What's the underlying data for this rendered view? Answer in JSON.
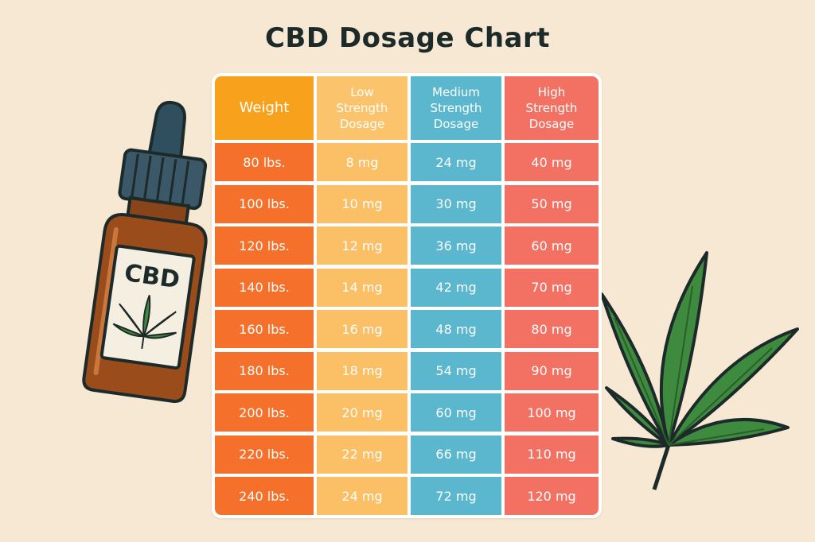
{
  "title": "CBD Dosage Chart",
  "bottle_label": "CBD",
  "icons": [
    "cbd-oil-bottle-icon",
    "cannabis-leaf-icon"
  ],
  "colors": {
    "background": "#f7e8d3",
    "weight": "#f5702a",
    "weight_header": "#f7a11c",
    "low": "#fbbf66",
    "medium": "#5ab7ce",
    "high": "#f37163"
  },
  "chart_data": {
    "type": "table",
    "title": "CBD Dosage Chart",
    "columns": [
      "Weight",
      "Low Strength Dosage",
      "Medium Strength Dosage",
      "High Strength Dosage"
    ],
    "rows": [
      [
        "80 lbs.",
        "8 mg",
        "24 mg",
        "40 mg"
      ],
      [
        "100 lbs.",
        "10 mg",
        "30 mg",
        "50 mg"
      ],
      [
        "120 lbs.",
        "12 mg",
        "36 mg",
        "60 mg"
      ],
      [
        "140 lbs.",
        "14 mg",
        "42 mg",
        "70 mg"
      ],
      [
        "160 lbs.",
        "16 mg",
        "48 mg",
        "80 mg"
      ],
      [
        "180 lbs.",
        "18 mg",
        "54 mg",
        "90 mg"
      ],
      [
        "200 lbs.",
        "20 mg",
        "60 mg",
        "100 mg"
      ],
      [
        "220 lbs.",
        "22 mg",
        "66 mg",
        "110 mg"
      ],
      [
        "240 lbs.",
        "24 mg",
        "72 mg",
        "120 mg"
      ]
    ]
  }
}
